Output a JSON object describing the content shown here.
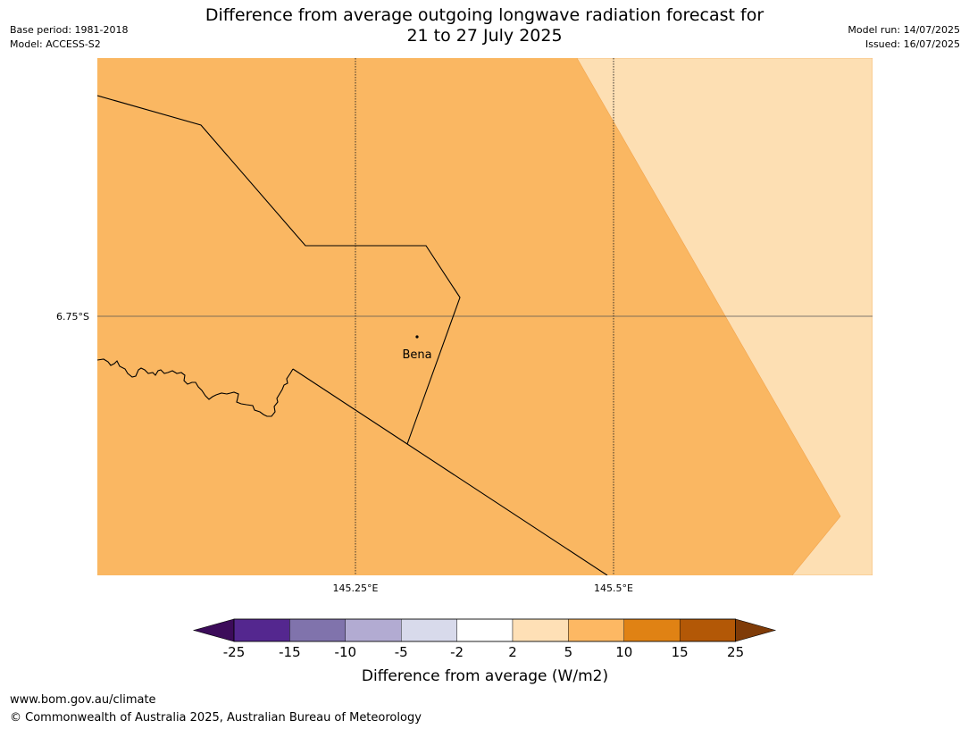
{
  "header": {
    "title_line1": "Difference from average outgoing longwave radiation forecast for",
    "title_line2": "21 to 27 July 2025",
    "base_period": "Base period: 1981-2018",
    "model": "Model: ACCESS-S2",
    "model_run": "Model run: 14/07/2025",
    "issued": "Issued: 16/07/2025"
  },
  "map": {
    "lat_label": "6.75°S",
    "lon_labels": [
      "145.25°E",
      "145.5°E"
    ],
    "place": "Bena",
    "colors": {
      "main_fill": "#fab762",
      "light_fill": "#fddfb3",
      "gridline": "#555555",
      "boundary": "#000000"
    }
  },
  "colorbar": {
    "label": "Difference from average (W/m2)",
    "ticks": [
      "-25",
      "-15",
      "-10",
      "-5",
      "-2",
      "2",
      "5",
      "10",
      "15",
      "25"
    ],
    "colors": [
      "#3c0c5a",
      "#54278f",
      "#8073ac",
      "#b2abd2",
      "#d8daeb",
      "#ffffff",
      "#fee0b6",
      "#fdb863",
      "#e08214",
      "#b35806",
      "#7f3b08"
    ]
  },
  "footer": {
    "url": "www.bom.gov.au/climate",
    "copyright": "© Commonwealth of Australia 2025, Australian Bureau of Meteorology"
  }
}
